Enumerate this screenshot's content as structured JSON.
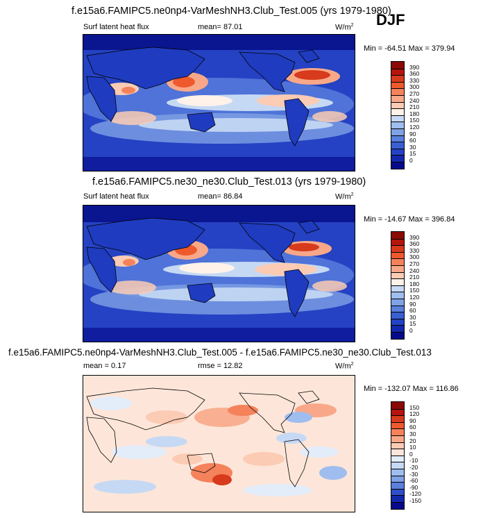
{
  "season": "DJF",
  "panels": [
    {
      "title": "f.e15a6.FAMIPC5.ne0np4-VarMeshNH3.Club_Test.005 (yrs 1979-1980)",
      "variable": "Surf latent heat flux",
      "stat": "mean=  87.01",
      "stat2": "",
      "units": "W/m",
      "units_sup": "2",
      "minmax": "Min = -64.51 Max = 379.94",
      "colorbar": {
        "labels": [
          "390",
          "360",
          "330",
          "300",
          "270",
          "240",
          "210",
          "180",
          "150",
          "120",
          "90",
          "60",
          "30",
          "15",
          "0"
        ],
        "colors": [
          "#8b0a06",
          "#b5150c",
          "#d73a1c",
          "#ee5a2e",
          "#f5825b",
          "#f8a888",
          "#fbcbb4",
          "#fff2e9",
          "#c6d9f4",
          "#9fbdee",
          "#7fa1e5",
          "#5a7fdd",
          "#3a5fd2",
          "#2442c3",
          "#1327ad",
          "#060a8a"
        ]
      }
    },
    {
      "title": "f.e15a6.FAMIPC5.ne30_ne30.Club_Test.013 (yrs 1979-1980)",
      "variable": "Surf latent heat flux",
      "stat": "mean=  86.84",
      "stat2": "",
      "units": "W/m",
      "units_sup": "2",
      "minmax": "Min = -14.67 Max = 396.84",
      "colorbar": {
        "labels": [
          "390",
          "360",
          "330",
          "300",
          "270",
          "240",
          "210",
          "180",
          "150",
          "120",
          "90",
          "60",
          "30",
          "15",
          "0"
        ],
        "colors": [
          "#8b0a06",
          "#b5150c",
          "#d73a1c",
          "#ee5a2e",
          "#f5825b",
          "#f8a888",
          "#fbcbb4",
          "#fff2e9",
          "#c6d9f4",
          "#9fbdee",
          "#7fa1e5",
          "#5a7fdd",
          "#3a5fd2",
          "#2442c3",
          "#1327ad",
          "#060a8a"
        ]
      }
    },
    {
      "title": "f.e15a6.FAMIPC5.ne0np4-VarMeshNH3.Club_Test.005 - f.e15a6.FAMIPC5.ne30_ne30.Club_Test.013",
      "variable": "mean =  0.17",
      "stat": "rmse =  12.82",
      "stat2": "",
      "units": "W/m",
      "units_sup": "2",
      "minmax": "Min = -132.07 Max = 116.86",
      "colorbar": {
        "labels": [
          "150",
          "120",
          "90",
          "60",
          "30",
          "20",
          "10",
          "0",
          "-10",
          "-20",
          "-30",
          "-60",
          "-90",
          "-120",
          "-150"
        ],
        "colors": [
          "#8b0a06",
          "#b5150c",
          "#d73a1c",
          "#ee5a2e",
          "#f5825b",
          "#f8a888",
          "#fbcbb4",
          "#fde6d9",
          "#e3ecf9",
          "#c6d9f4",
          "#9fbdee",
          "#7fa1e5",
          "#5a7fdd",
          "#2f4fc8",
          "#1327ad",
          "#060a8a"
        ]
      }
    }
  ]
}
